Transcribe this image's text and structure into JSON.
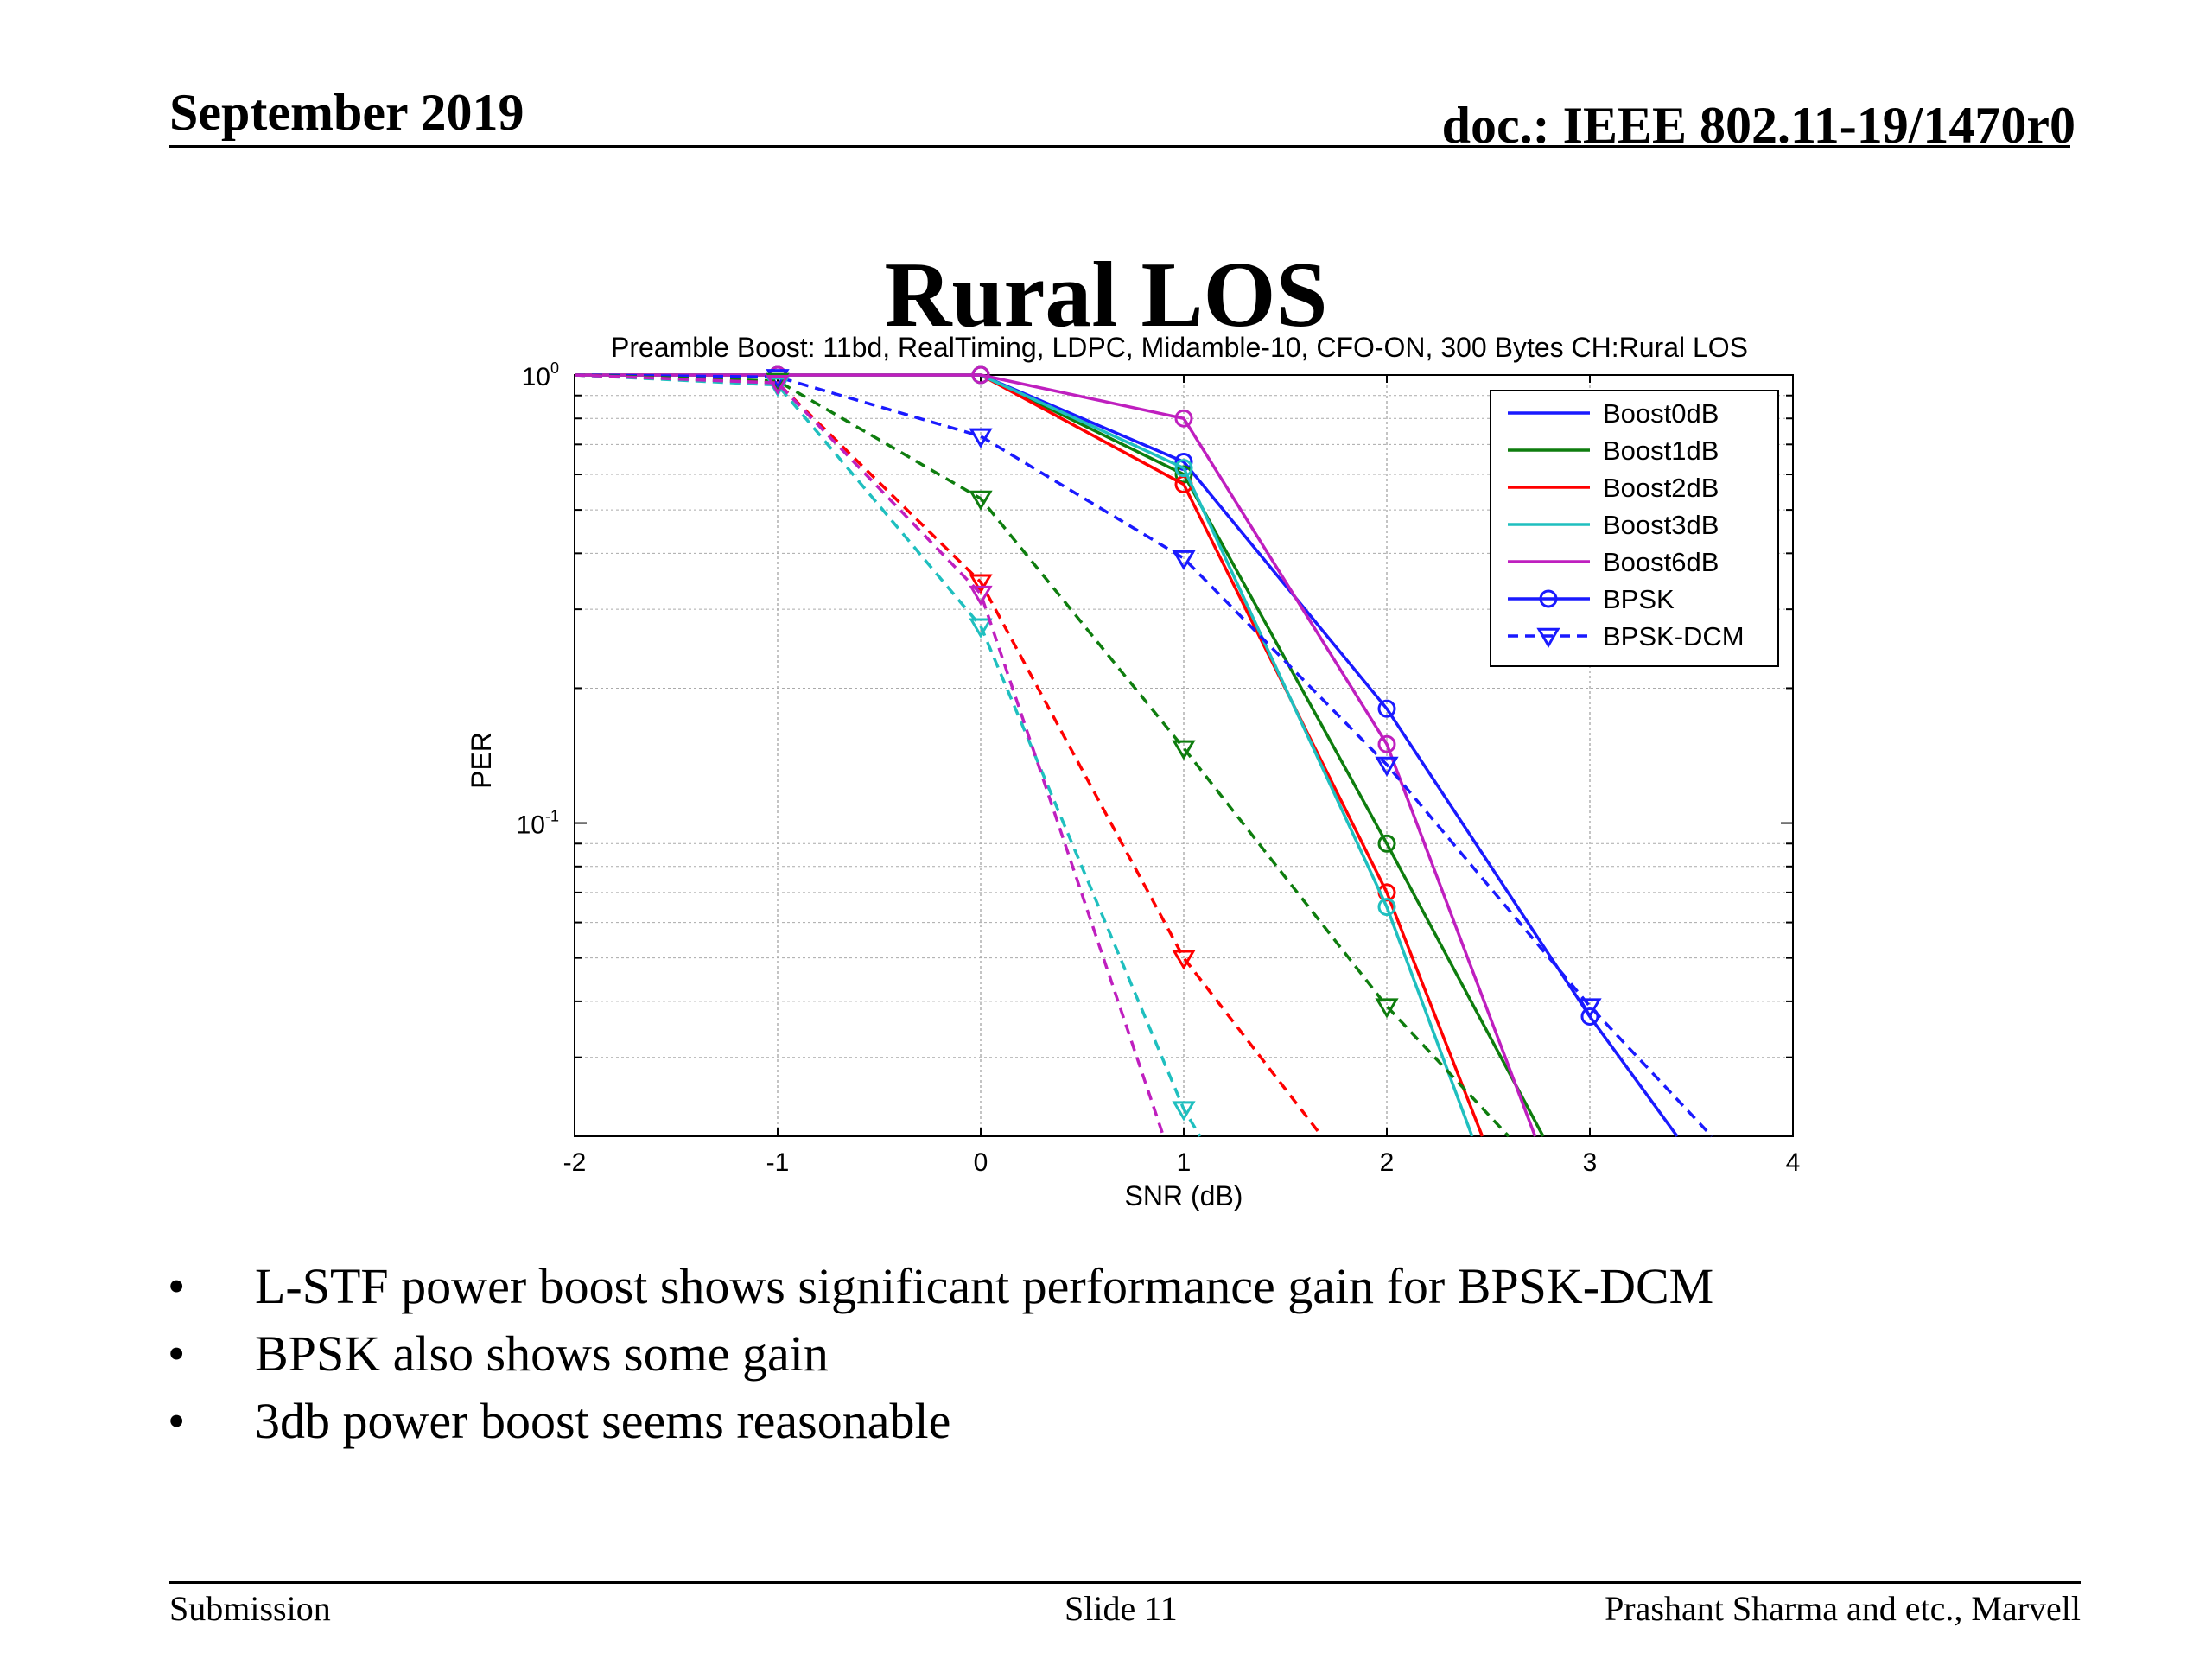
{
  "header": {
    "date": "September 2019",
    "doc": "doc.: IEEE 802.11-19/1470r0"
  },
  "slide_title": "Rural LOS",
  "chart_data": {
    "type": "line",
    "title": "Preamble Boost: 11bd, RealTiming, LDPC, Midamble-10, CFO-ON, 300 Bytes CH:Rural LOS",
    "xlabel": "SNR (dB)",
    "ylabel": "PER",
    "xlim": [
      -2,
      4
    ],
    "ylim": [
      0.02,
      1
    ],
    "yscale": "log",
    "grid": true,
    "legend_position": "top-right",
    "x_ticks": [
      "-2",
      "-1",
      "0",
      "1",
      "2",
      "3",
      "4"
    ],
    "y_ticks": [
      {
        "base": "10",
        "exp": "0",
        "value": 1
      },
      {
        "base": "10",
        "exp": "-1",
        "value": 0.1
      }
    ],
    "legend": [
      {
        "label": "Boost0dB",
        "color": "#1a1aff",
        "dash": false,
        "marker": "none"
      },
      {
        "label": "Boost1dB",
        "color": "#0e7d0e",
        "dash": false,
        "marker": "none"
      },
      {
        "label": "Boost2dB",
        "color": "#ff0000",
        "dash": false,
        "marker": "none"
      },
      {
        "label": "Boost3dB",
        "color": "#1fbfbf",
        "dash": false,
        "marker": "none"
      },
      {
        "label": "Boost6dB",
        "color": "#bf1fbf",
        "dash": false,
        "marker": "none"
      },
      {
        "label": "BPSK",
        "color": "#1a1aff",
        "dash": false,
        "marker": "circle"
      },
      {
        "label": "BPSK-DCM",
        "color": "#1a1aff",
        "dash": true,
        "marker": "triangle"
      }
    ],
    "series": [
      {
        "boost": "Boost0dB",
        "mod": "BPSK",
        "color": "#1a1aff",
        "dash": false,
        "marker": "circle",
        "x": [
          -2,
          -1,
          0,
          1,
          2,
          3,
          3.43
        ],
        "y": [
          1.0,
          1.0,
          1.0,
          0.64,
          0.18,
          0.037,
          0.02
        ]
      },
      {
        "boost": "Boost1dB",
        "mod": "BPSK",
        "color": "#0e7d0e",
        "dash": false,
        "marker": "circle",
        "x": [
          -2,
          -1,
          0,
          1,
          2,
          2.77
        ],
        "y": [
          1.0,
          1.0,
          1.0,
          0.6,
          0.09,
          0.02
        ]
      },
      {
        "boost": "Boost2dB",
        "mod": "BPSK",
        "color": "#ff0000",
        "dash": false,
        "marker": "circle",
        "x": [
          -2,
          -1,
          0,
          1,
          2,
          2.47
        ],
        "y": [
          1.0,
          1.0,
          1.0,
          0.57,
          0.07,
          0.02
        ]
      },
      {
        "boost": "Boost3dB",
        "mod": "BPSK",
        "color": "#1fbfbf",
        "dash": false,
        "marker": "circle",
        "x": [
          -2,
          -1,
          0,
          1,
          2,
          2.42
        ],
        "y": [
          1.0,
          1.0,
          1.0,
          0.62,
          0.065,
          0.02
        ]
      },
      {
        "boost": "Boost6dB",
        "mod": "BPSK",
        "color": "#bf1fbf",
        "dash": false,
        "marker": "circle",
        "x": [
          -2,
          -1,
          0,
          1,
          2,
          2.73
        ],
        "y": [
          1.0,
          1.0,
          1.0,
          0.8,
          0.15,
          0.02
        ]
      },
      {
        "boost": "Boost0dB",
        "mod": "BPSK-DCM",
        "color": "#1a1aff",
        "dash": true,
        "marker": "triangle",
        "x": [
          -2,
          -1,
          0,
          1,
          2,
          3,
          3.6
        ],
        "y": [
          1.0,
          0.99,
          0.73,
          0.39,
          0.135,
          0.039,
          0.02
        ]
      },
      {
        "boost": "Boost1dB",
        "mod": "BPSK-DCM",
        "color": "#0e7d0e",
        "dash": true,
        "marker": "triangle",
        "x": [
          -2,
          -1,
          0,
          1,
          2,
          2.6
        ],
        "y": [
          1.0,
          0.97,
          0.53,
          0.147,
          0.039,
          0.02
        ]
      },
      {
        "boost": "Boost2dB",
        "mod": "BPSK-DCM",
        "color": "#ff0000",
        "dash": true,
        "marker": "triangle",
        "x": [
          -2,
          -1,
          0,
          1,
          1.68
        ],
        "y": [
          1.0,
          0.96,
          0.345,
          0.05,
          0.02
        ]
      },
      {
        "boost": "Boost3dB",
        "mod": "BPSK-DCM",
        "color": "#1fbfbf",
        "dash": true,
        "marker": "triangle",
        "x": [
          -2,
          -1,
          0,
          1,
          1.08
        ],
        "y": [
          1.0,
          0.95,
          0.275,
          0.023,
          0.02
        ]
      },
      {
        "boost": "Boost6dB",
        "mod": "BPSK-DCM",
        "color": "#bf1fbf",
        "dash": true,
        "marker": "triangle",
        "x": [
          -2,
          -1,
          0,
          0.9
        ],
        "y": [
          1.0,
          0.96,
          0.325,
          0.02
        ]
      }
    ]
  },
  "bullets": [
    "L-STF power boost shows significant performance gain for BPSK-DCM",
    "BPSK also shows some gain",
    "3db power boost seems reasonable"
  ],
  "footer": {
    "left": "Submission",
    "center": "Slide 11",
    "right": "Prashant Sharma and etc., Marvell"
  }
}
